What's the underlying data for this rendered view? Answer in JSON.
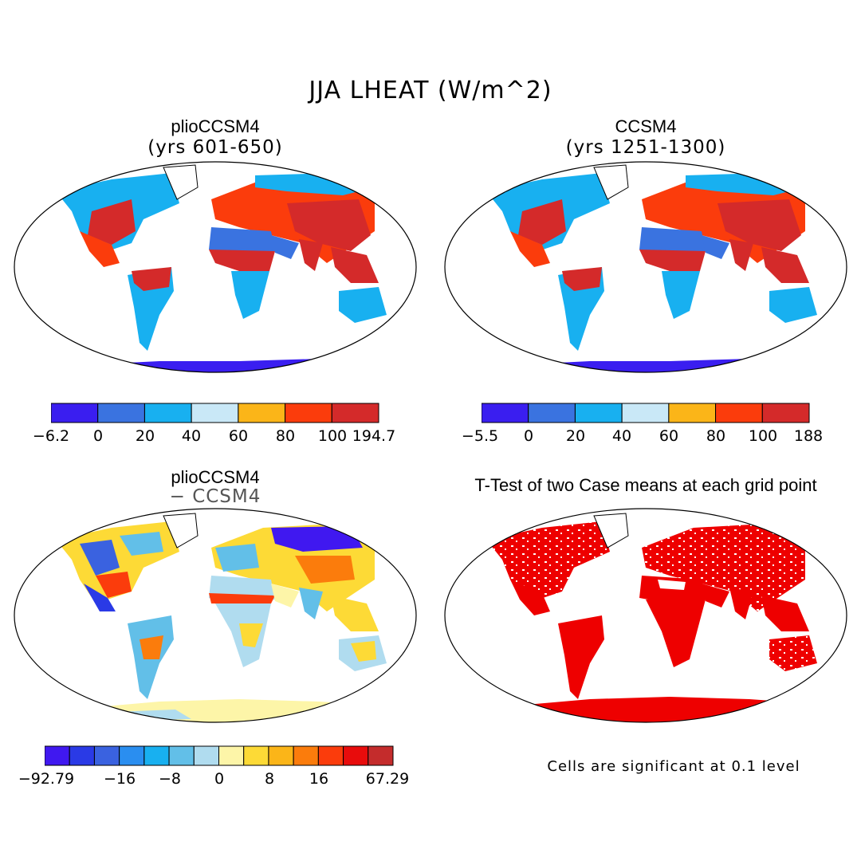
{
  "figure": {
    "title": "JJA LHEAT (W/m^2)"
  },
  "panels": {
    "top_left": {
      "title": "plioCCSM4",
      "subtitle": "(yrs 601-650)"
    },
    "top_right": {
      "title": "CCSM4",
      "subtitle": "(yrs 1251-1300)"
    },
    "bottom_left": {
      "title": "plioCCSM4",
      "subtitle": "− CCSM4"
    },
    "bottom_right": {
      "title": "T-Test of two Case means at each grid point",
      "note": "Cells are significant at 0.1 level"
    }
  },
  "colorbars": {
    "top_left": {
      "labels": [
        "−6.2",
        "0",
        "20",
        "40",
        "60",
        "80",
        "100",
        "194.7"
      ],
      "colors": [
        "#3a1ef0",
        "#3a73e0",
        "#18b0f0",
        "#c9e8f7",
        "#fbb518",
        "#fb3c0c",
        "#d42a2a"
      ]
    },
    "top_right": {
      "labels": [
        "−5.5",
        "0",
        "20",
        "40",
        "60",
        "80",
        "100",
        "188"
      ],
      "colors": [
        "#3a1ef0",
        "#3a73e0",
        "#18b0f0",
        "#c9e8f7",
        "#fbb518",
        "#fb3c0c",
        "#d42a2a"
      ]
    },
    "bottom_left": {
      "labels": [
        "−92.79",
        "−16",
        "−8",
        "0",
        "8",
        "16",
        "67.29"
      ],
      "colors": [
        "#4018f0",
        "#2a3ae6",
        "#3a62e0",
        "#2a8ef0",
        "#18b0f0",
        "#62bfe8",
        "#b0dcef",
        "#fdf5a8",
        "#fdda36",
        "#fbb518",
        "#fb7c0c",
        "#fb3c0c",
        "#e80c0c",
        "#c42c2c"
      ]
    }
  },
  "colors": {
    "significant": "#ee0000",
    "antarctica_abs": "#3a1ef0",
    "antarctica_diff": "#fdf5a8"
  },
  "map_legend_semantics": {
    "projection": "Robinson-like global",
    "note": "Land areas colored by latent heat flux; ocean left blank"
  }
}
